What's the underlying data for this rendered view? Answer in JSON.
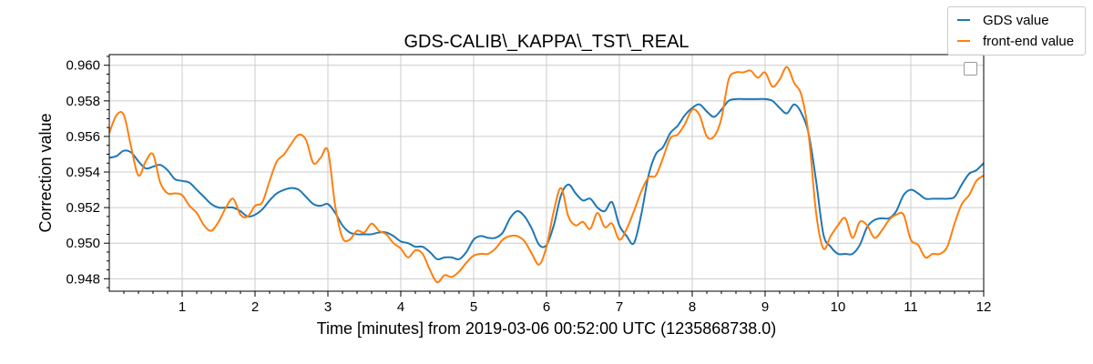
{
  "chart_data": {
    "type": "line",
    "title": "GDS-CALIB\\_KAPPA\\_TST\\_REAL",
    "xlabel": "Time [minutes] from 2019-03-06 00:52:00 UTC (1235868738.0)",
    "ylabel": "Correction value",
    "xlim": [
      0,
      12
    ],
    "ylim": [
      0.9473,
      0.9606
    ],
    "xticks": [
      1,
      2,
      3,
      4,
      5,
      6,
      7,
      8,
      9,
      10,
      11,
      12
    ],
    "xtick_labels": [
      "1",
      "2",
      "3",
      "4",
      "5",
      "6",
      "7",
      "8",
      "9",
      "10",
      "11",
      "12"
    ],
    "yticks": [
      0.948,
      0.95,
      0.952,
      0.954,
      0.956,
      0.958,
      0.96
    ],
    "ytick_labels": [
      "0.948",
      "0.950",
      "0.952",
      "0.954",
      "0.956",
      "0.958",
      "0.960"
    ],
    "grid": true,
    "legend": "top-right, outside plot",
    "series": [
      {
        "name": "GDS value",
        "color": "#1f77b4",
        "x": [
          0,
          0.1,
          0.2,
          0.3,
          0.4,
          0.5,
          0.6,
          0.7,
          0.8,
          0.9,
          1.0,
          1.1,
          1.2,
          1.3,
          1.4,
          1.5,
          1.6,
          1.7,
          1.8,
          1.9,
          2.0,
          2.1,
          2.2,
          2.3,
          2.4,
          2.5,
          2.6,
          2.7,
          2.8,
          2.9,
          3.0,
          3.1,
          3.2,
          3.3,
          3.4,
          3.5,
          3.6,
          3.7,
          3.8,
          3.9,
          4.0,
          4.1,
          4.2,
          4.3,
          4.4,
          4.5,
          4.6,
          4.7,
          4.8,
          4.9,
          5.0,
          5.1,
          5.2,
          5.3,
          5.4,
          5.5,
          5.6,
          5.7,
          5.8,
          5.9,
          6.0,
          6.1,
          6.2,
          6.3,
          6.4,
          6.5,
          6.6,
          6.7,
          6.8,
          6.9,
          7.0,
          7.1,
          7.2,
          7.3,
          7.4,
          7.5,
          7.6,
          7.7,
          7.8,
          7.9,
          8.0,
          8.1,
          8.2,
          8.3,
          8.4,
          8.5,
          8.6,
          8.7,
          8.8,
          8.9,
          9.0,
          9.1,
          9.2,
          9.3,
          9.4,
          9.5,
          9.6,
          9.7,
          9.8,
          9.9,
          10.0,
          10.1,
          10.2,
          10.3,
          10.4,
          10.5,
          10.6,
          10.7,
          10.8,
          10.9,
          11.0,
          11.1,
          11.2,
          11.3,
          11.4,
          11.5,
          11.6,
          11.7,
          11.8,
          11.9,
          12.0
        ],
        "values": [
          0.9548,
          0.9549,
          0.9552,
          0.9551,
          0.9546,
          0.9542,
          0.9543,
          0.9544,
          0.9541,
          0.9536,
          0.9535,
          0.9534,
          0.953,
          0.9526,
          0.9522,
          0.952,
          0.952,
          0.952,
          0.9518,
          0.9515,
          0.9516,
          0.9519,
          0.9524,
          0.9528,
          0.953,
          0.9531,
          0.953,
          0.9526,
          0.9522,
          0.9521,
          0.9522,
          0.9517,
          0.951,
          0.9506,
          0.9505,
          0.9505,
          0.9505,
          0.9506,
          0.9506,
          0.9504,
          0.9501,
          0.95,
          0.9498,
          0.9498,
          0.9495,
          0.9491,
          0.9492,
          0.9492,
          0.9491,
          0.9495,
          0.9502,
          0.9504,
          0.9503,
          0.9503,
          0.9506,
          0.9514,
          0.9518,
          0.9515,
          0.9508,
          0.9499,
          0.9499,
          0.951,
          0.9527,
          0.9533,
          0.9528,
          0.9524,
          0.9525,
          0.952,
          0.9518,
          0.9523,
          0.951,
          0.9504,
          0.95,
          0.9516,
          0.9538,
          0.955,
          0.9554,
          0.9562,
          0.9566,
          0.9572,
          0.9576,
          0.9578,
          0.9574,
          0.9571,
          0.9575,
          0.958,
          0.9581,
          0.9581,
          0.9581,
          0.9581,
          0.9581,
          0.958,
          0.9576,
          0.9573,
          0.9578,
          0.9573,
          0.9561,
          0.9535,
          0.9505,
          0.9498,
          0.9494,
          0.9494,
          0.9494,
          0.9499,
          0.9509,
          0.9513,
          0.9514,
          0.9514,
          0.9518,
          0.9527,
          0.953,
          0.9528,
          0.9525,
          0.9525,
          0.9525,
          0.9525,
          0.9526,
          0.9533,
          0.9539,
          0.9541,
          0.9545
        ]
      },
      {
        "name": "front-end value",
        "color": "#ff7f0e",
        "x": [
          0,
          0.1,
          0.2,
          0.3,
          0.4,
          0.5,
          0.6,
          0.7,
          0.8,
          0.9,
          1.0,
          1.1,
          1.2,
          1.3,
          1.4,
          1.5,
          1.6,
          1.7,
          1.8,
          1.9,
          2.0,
          2.1,
          2.2,
          2.3,
          2.4,
          2.5,
          2.6,
          2.7,
          2.8,
          2.9,
          3.0,
          3.1,
          3.2,
          3.3,
          3.4,
          3.5,
          3.6,
          3.7,
          3.8,
          3.9,
          4.0,
          4.1,
          4.2,
          4.3,
          4.4,
          4.5,
          4.6,
          4.7,
          4.8,
          4.9,
          5.0,
          5.1,
          5.2,
          5.3,
          5.4,
          5.5,
          5.6,
          5.7,
          5.8,
          5.9,
          6.0,
          6.1,
          6.2,
          6.3,
          6.4,
          6.5,
          6.6,
          6.7,
          6.8,
          6.9,
          7.0,
          7.1,
          7.2,
          7.3,
          7.4,
          7.5,
          7.6,
          7.7,
          7.8,
          7.9,
          8.0,
          8.1,
          8.2,
          8.3,
          8.4,
          8.5,
          8.6,
          8.7,
          8.8,
          8.9,
          9.0,
          9.1,
          9.2,
          9.3,
          9.4,
          9.5,
          9.6,
          9.7,
          9.8,
          9.9,
          10.0,
          10.1,
          10.2,
          10.3,
          10.4,
          10.5,
          10.6,
          10.7,
          10.8,
          10.9,
          11.0,
          11.1,
          11.2,
          11.3,
          11.4,
          11.5,
          11.6,
          11.7,
          11.8,
          11.9,
          12.0
        ],
        "values": [
          0.9562,
          0.9572,
          0.9572,
          0.9554,
          0.9538,
          0.9546,
          0.955,
          0.9534,
          0.9528,
          0.9528,
          0.9527,
          0.9521,
          0.9517,
          0.951,
          0.9507,
          0.9512,
          0.952,
          0.9525,
          0.9516,
          0.9515,
          0.9521,
          0.9523,
          0.9535,
          0.9546,
          0.955,
          0.9556,
          0.9561,
          0.9558,
          0.9545,
          0.9548,
          0.9552,
          0.9521,
          0.9503,
          0.9502,
          0.9507,
          0.9506,
          0.9511,
          0.9507,
          0.9505,
          0.95,
          0.9497,
          0.9492,
          0.9496,
          0.9494,
          0.9485,
          0.9478,
          0.9482,
          0.9481,
          0.9484,
          0.9489,
          0.9493,
          0.9494,
          0.9494,
          0.9497,
          0.9502,
          0.9504,
          0.9504,
          0.9501,
          0.9494,
          0.9488,
          0.9498,
          0.9518,
          0.9531,
          0.9515,
          0.951,
          0.9512,
          0.9508,
          0.9517,
          0.9509,
          0.9511,
          0.9502,
          0.9508,
          0.9518,
          0.9529,
          0.9537,
          0.9538,
          0.9548,
          0.9559,
          0.9561,
          0.9567,
          0.9575,
          0.9572,
          0.956,
          0.956,
          0.957,
          0.9592,
          0.9596,
          0.9596,
          0.9597,
          0.9593,
          0.9596,
          0.9588,
          0.9592,
          0.9599,
          0.959,
          0.9583,
          0.956,
          0.9517,
          0.9497,
          0.9504,
          0.951,
          0.9514,
          0.9503,
          0.9512,
          0.951,
          0.9503,
          0.9507,
          0.9513,
          0.9516,
          0.9516,
          0.9502,
          0.9499,
          0.9492,
          0.9494,
          0.9494,
          0.9498,
          0.9511,
          0.9522,
          0.9527,
          0.9535,
          0.9538
        ]
      }
    ]
  },
  "legend_box": {
    "items": [
      {
        "label": "GDS value",
        "color": "#1f77b4"
      },
      {
        "label": "front-end value",
        "color": "#ff7f0e"
      }
    ]
  }
}
